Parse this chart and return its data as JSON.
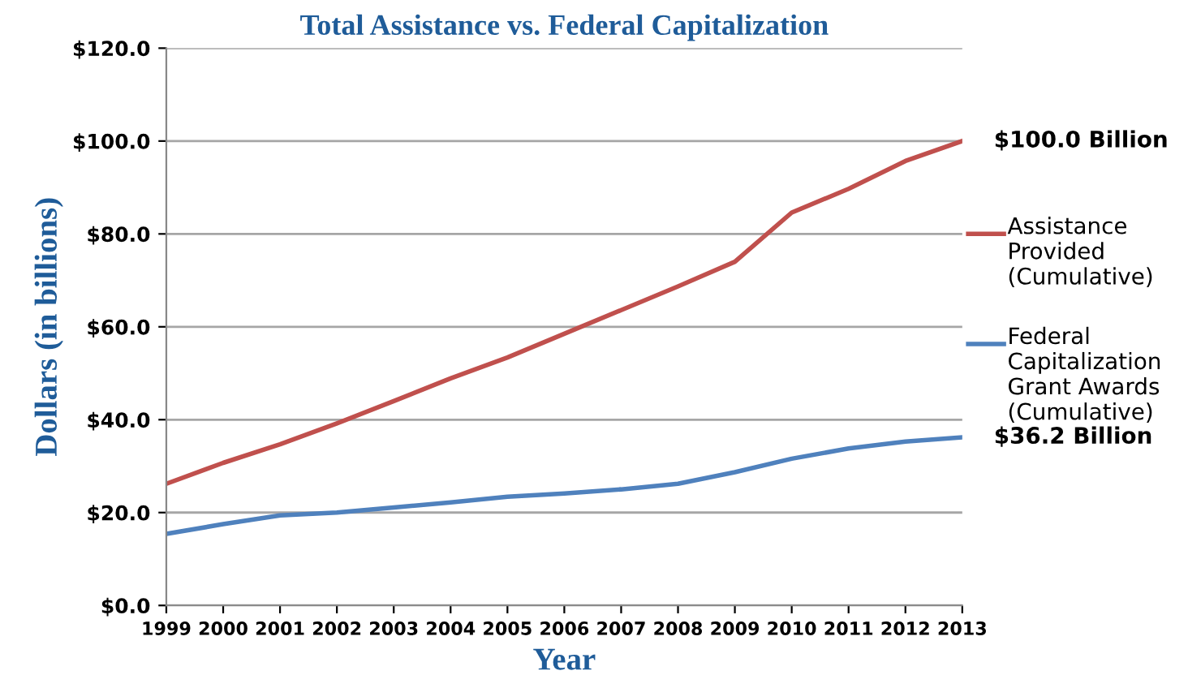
{
  "chart_data": {
    "type": "line",
    "title": "Total Assistance vs. Federal Capitalization",
    "xlabel": "Year",
    "ylabel": "Dollars (in billions)",
    "x": [
      1999,
      2000,
      2001,
      2002,
      2003,
      2004,
      2005,
      2006,
      2007,
      2008,
      2009,
      2010,
      2011,
      2012,
      2013
    ],
    "series": [
      {
        "name": "Assistance Provided (Cumulative)",
        "color": "#c0504d",
        "values": [
          26.2,
          30.7,
          34.7,
          39.2,
          44.0,
          48.9,
          53.4,
          58.5,
          63.6,
          68.7,
          74.0,
          84.6,
          89.7,
          95.7,
          100.0
        ]
      },
      {
        "name": "Federal Capitalization Grant Awards (Cumulative)",
        "color": "#4f81bd",
        "values": [
          15.4,
          17.5,
          19.4,
          20.0,
          21.1,
          22.2,
          23.4,
          24.1,
          25.0,
          26.2,
          28.7,
          31.6,
          33.8,
          35.3,
          36.2
        ]
      }
    ],
    "xlim": [
      1999,
      2013
    ],
    "xticks": [
      1999,
      2000,
      2001,
      2002,
      2003,
      2004,
      2005,
      2006,
      2007,
      2008,
      2009,
      2010,
      2011,
      2012,
      2013
    ],
    "ylim": [
      0,
      120
    ],
    "yticks": [
      {
        "value": 0,
        "label": "$0.0"
      },
      {
        "value": 20,
        "label": "$20.0"
      },
      {
        "value": 40,
        "label": "$40.0"
      },
      {
        "value": 60,
        "label": "$60.0"
      },
      {
        "value": 80,
        "label": "$80.0"
      },
      {
        "value": 100,
        "label": "$100.0"
      },
      {
        "value": 120,
        "label": "$120.0"
      }
    ],
    "annotations": [
      {
        "text": "$100.0 Billion",
        "x": 2013,
        "y": 100.0
      },
      {
        "text": "$36.2 Billion",
        "x": 2013,
        "y": 36.2
      }
    ],
    "grid": "y",
    "legend": "right",
    "marker": "none",
    "line_style": "solid"
  }
}
